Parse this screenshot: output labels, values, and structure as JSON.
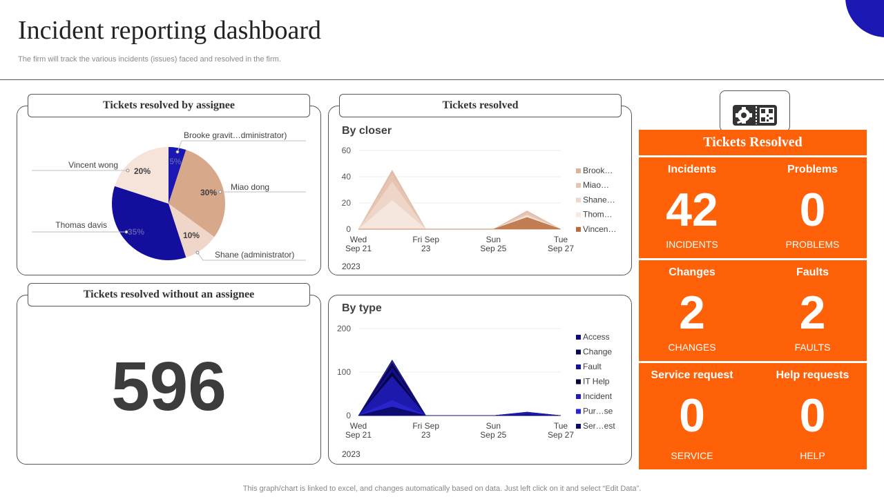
{
  "header": {
    "title": "Incident reporting dashboard",
    "subtitle": "The firm will track the various incidents (issues) faced and resolved in the firm."
  },
  "panels": {
    "assignee_title": "Tickets resolved by assignee",
    "resolved_title": "Tickets resolved",
    "without_title": "Tickets resolved without an assignee",
    "without_value": "596"
  },
  "tickets_resolved": {
    "title": "Tickets Resolved",
    "cells": [
      {
        "label": "Incidents",
        "value": "42",
        "caption": "INCIDENTS"
      },
      {
        "label": "Problems",
        "value": "0",
        "caption": "PROBLEMS"
      },
      {
        "label": "Changes",
        "value": "2",
        "caption": "CHANGES"
      },
      {
        "label": "Faults",
        "value": "2",
        "caption": "FAULTS"
      },
      {
        "label": "Service request",
        "value": "0",
        "caption": "SERVICE"
      },
      {
        "label": "Help requests",
        "value": "0",
        "caption": "HELP"
      }
    ]
  },
  "footnote": "This graph/chart is linked to excel,  and changes automatically based on data. Just left click on it and select “Edit Data”.",
  "colors": {
    "accent": "#ff6109",
    "navy": "#1a17b3"
  },
  "icons": [
    "ticket-gear-icon",
    "qr-code-icon"
  ],
  "chart_data": [
    {
      "type": "pie",
      "title": "",
      "slices": [
        {
          "name": "Brooke gravit…dministrator)",
          "value": 5,
          "label": "5%",
          "color": "#1a17b3"
        },
        {
          "name": "Miao dong",
          "value": 30,
          "label": "30%",
          "color": "#d8a88a"
        },
        {
          "name": "Shane (administrator)",
          "value": 10,
          "label": "10%",
          "color": "#efd6c8"
        },
        {
          "name": "Thomas davis",
          "value": 35,
          "label": "35%",
          "color": "#130e9c"
        },
        {
          "name": "Vincent wong",
          "value": 20,
          "label": "20%",
          "color": "#f6e4db"
        }
      ]
    },
    {
      "type": "area",
      "title": "By closer",
      "year": "2023",
      "categories": [
        "Wed Sep 21",
        "Thu Sep 22",
        "Fri Sep 23",
        "Sat Sep 24",
        "Sun Sep 25",
        "Mon Sep 26",
        "Tue Sep 27"
      ],
      "tick_labels": [
        [
          "Wed",
          "Sep 21"
        ],
        [
          "Fri Sep",
          "23"
        ],
        [
          "Sun",
          "Sep 25"
        ],
        [
          "Tue",
          "Sep 27"
        ]
      ],
      "tick_positions": [
        0,
        2,
        4,
        6
      ],
      "yticks": [
        0,
        20,
        40,
        60
      ],
      "ylim": [
        0,
        60
      ],
      "series": [
        {
          "name": "Brook…",
          "values": [
            0,
            45,
            0,
            0,
            0,
            14,
            0
          ],
          "color": "#dbb39c"
        },
        {
          "name": "Miao…",
          "values": [
            0,
            42,
            0,
            0,
            0,
            13,
            0
          ],
          "color": "#e6c6b3"
        },
        {
          "name": "Shane…",
          "values": [
            0,
            36,
            0,
            0,
            0,
            11,
            0
          ],
          "color": "#efd8ca"
        },
        {
          "name": "Thom…",
          "values": [
            0,
            22,
            0,
            0,
            0,
            10,
            0
          ],
          "color": "#f6e9e2"
        },
        {
          "name": "Vincen…",
          "values": [
            0,
            0,
            0,
            0,
            0,
            9,
            0
          ],
          "color": "#b96a3c"
        }
      ]
    },
    {
      "type": "area",
      "title": "By type",
      "year": "2023",
      "categories": [
        "Wed Sep 21",
        "Thu Sep 22",
        "Fri Sep 23",
        "Sat Sep 24",
        "Sun Sep 25",
        "Mon Sep 26",
        "Tue Sep 27"
      ],
      "tick_labels": [
        [
          "Wed",
          "Sep 21"
        ],
        [
          "Fri Sep",
          "23"
        ],
        [
          "Sun",
          "Sep 25"
        ],
        [
          "Tue",
          "Sep 27"
        ]
      ],
      "tick_positions": [
        0,
        2,
        4,
        6
      ],
      "yticks": [
        0,
        100,
        200
      ],
      "ylim": [
        0,
        200
      ],
      "series": [
        {
          "name": "Access",
          "values": [
            0,
            128,
            0,
            0,
            0,
            8,
            0
          ],
          "color": "#0c0a7a"
        },
        {
          "name": "Change",
          "values": [
            0,
            120,
            0,
            0,
            0,
            7,
            0
          ],
          "color": "#08064f"
        },
        {
          "name": "Fault",
          "values": [
            0,
            110,
            0,
            0,
            0,
            6,
            0
          ],
          "color": "#14119a"
        },
        {
          "name": "IT Help",
          "values": [
            0,
            100,
            0,
            0,
            0,
            5,
            0
          ],
          "color": "#05043a"
        },
        {
          "name": "Incident",
          "values": [
            0,
            90,
            0,
            0,
            0,
            8,
            0
          ],
          "color": "#1f1cb8"
        },
        {
          "name": "Pur…se",
          "values": [
            0,
            35,
            0,
            0,
            0,
            3,
            0
          ],
          "color": "#2a25d0"
        },
        {
          "name": "Ser…est",
          "values": [
            0,
            20,
            0,
            0,
            0,
            2,
            0
          ],
          "color": "#0b0966"
        }
      ]
    }
  ]
}
